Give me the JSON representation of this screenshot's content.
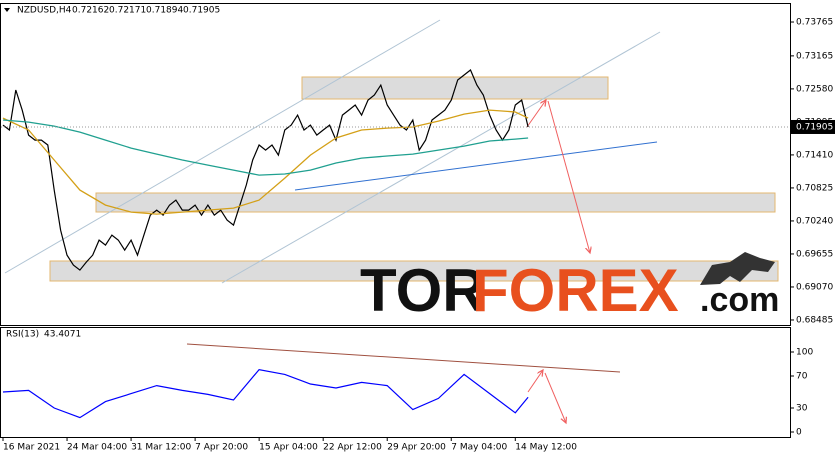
{
  "chart_data": [
    {
      "type": "line",
      "title": "NZDUSD,H4",
      "ohlc": [
        0.72162,
        0.72171,
        0.71894,
        0.71905
      ],
      "ylim": [
        0.68396,
        0.74102
      ],
      "yticks": [
        0.73765,
        0.73165,
        {
          "value": 0.7258,
          "label": "0.72580"
        },
        0.71995,
        {
          "value": 0.7141,
          "label": "0.71410"
        },
        0.70825,
        {
          "value": 0.7024,
          "label": "0.70240"
        },
        0.69655,
        {
          "value": 0.6907,
          "label": "0.69070"
        },
        0.68485
      ],
      "xlim": [
        -0.47,
        122.9
      ],
      "xticks": [
        {
          "value": 0,
          "label": "16 Mar 2021"
        },
        {
          "value": 10,
          "label": "24 Mar 04:00"
        },
        {
          "value": 20,
          "label": "31 Mar 12:00"
        },
        {
          "value": 30,
          "label": "7 Apr 20:00"
        },
        {
          "value": 40,
          "label": "15 Apr 04:00"
        },
        {
          "value": 50,
          "label": "22 Apr 12:00"
        },
        {
          "value": 60,
          "label": "29 Apr 20:00"
        },
        {
          "value": 70,
          "label": "7 May 04:00"
        },
        {
          "value": 80,
          "label": "14 May 12:00"
        }
      ],
      "series": [
        {
          "color": "#000000",
          "x": [
            0,
            1,
            2,
            3,
            4,
            5,
            6,
            7,
            8,
            9,
            10,
            11,
            12,
            13,
            14,
            15,
            16,
            17,
            18,
            19,
            20,
            21,
            22,
            23,
            24,
            25,
            26,
            27,
            28,
            29,
            30,
            31,
            32,
            33,
            34,
            35,
            36,
            37,
            38,
            39,
            40,
            41,
            42,
            43,
            44,
            45,
            46,
            47,
            48,
            49,
            50,
            51,
            52,
            53,
            54,
            55,
            56,
            57,
            58,
            59,
            60,
            61,
            62,
            63,
            64,
            65,
            66,
            67,
            68,
            69,
            70,
            71,
            72,
            73,
            74,
            75,
            76,
            77,
            78,
            79,
            80,
            81,
            82
          ],
          "values": [
            0.71939,
            0.71851,
            0.7256,
            0.72205,
            0.71762,
            0.71673,
            0.71673,
            0.71585,
            0.70787,
            0.70078,
            0.69635,
            0.69457,
            0.69369,
            0.69511,
            0.69635,
            0.69901,
            0.69812,
            0.69989,
            0.69901,
            0.69723,
            0.69901,
            0.69635,
            0.69989,
            0.70344,
            0.70432,
            0.70344,
            0.70521,
            0.7061,
            0.70432,
            0.70432,
            0.70521,
            0.70344,
            0.70521,
            0.70344,
            0.70432,
            0.70255,
            0.70166,
            0.70521,
            0.70876,
            0.71319,
            0.71585,
            0.71496,
            0.71585,
            0.71407,
            0.71851,
            0.71939,
            0.72116,
            0.71851,
            0.71939,
            0.71762,
            0.71851,
            0.71939,
            0.71673,
            0.72116,
            0.72205,
            0.72294,
            0.72116,
            0.72382,
            0.72471,
            0.72648,
            0.72294,
            0.72116,
            0.71939,
            0.71851,
            0.72028,
            0.71496,
            0.71673,
            0.72028,
            0.72116,
            0.72205,
            0.72382,
            0.72737,
            0.72826,
            0.72914,
            0.72648,
            0.72471,
            0.72116,
            0.71851,
            0.71673,
            0.71851,
            0.72294,
            0.72382,
            0.71905
          ]
        },
        {
          "color": "#d4a017",
          "x": [
            0,
            4,
            8,
            12,
            16,
            20,
            24,
            28,
            32,
            36,
            40,
            44,
            48,
            52,
            56,
            60,
            64,
            68,
            72,
            76,
            80,
            82
          ],
          "values": [
            0.72063,
            0.71851,
            0.71319,
            0.70787,
            0.70521,
            0.70397,
            0.70361,
            0.70397,
            0.70432,
            0.70468,
            0.7061,
            0.71,
            0.71407,
            0.71709,
            0.71851,
            0.71886,
            0.71904,
            0.7201,
            0.72134,
            0.72205,
            0.7217,
            0.72063
          ]
        },
        {
          "color": "#20a090",
          "x": [
            0,
            4,
            8,
            12,
            16,
            20,
            24,
            28,
            32,
            36,
            40,
            44,
            48,
            52,
            56,
            60,
            64,
            68,
            72,
            76,
            80,
            82
          ],
          "values": [
            0.72028,
            0.71992,
            0.71921,
            0.71815,
            0.71673,
            0.71531,
            0.71425,
            0.71319,
            0.7123,
            0.71141,
            0.71053,
            0.71071,
            0.71141,
            0.71266,
            0.71354,
            0.7139,
            0.71425,
            0.71496,
            0.71567,
            0.71656,
            0.71691,
            0.71709
          ]
        }
      ],
      "watermark": [
        "TOR",
        "FOREX",
        ".com"
      ]
    },
    {
      "type": "line",
      "title": "RSI(13)",
      "ylim": [
        0,
        100
      ],
      "yticks": [
        0,
        30,
        70,
        100
      ],
      "series": [
        {
          "color": "#0000ff",
          "x": [
            0,
            4,
            8,
            12,
            16,
            20,
            24,
            28,
            32,
            36,
            40,
            44,
            48,
            52,
            56,
            60,
            64,
            68,
            72,
            76,
            80,
            82
          ],
          "values": [
            50,
            52,
            30,
            18,
            38,
            48,
            58,
            52,
            47,
            40,
            78,
            72,
            60,
            55,
            62,
            58,
            28,
            42,
            72,
            48,
            24,
            43.4071
          ]
        }
      ]
    }
  ]
}
